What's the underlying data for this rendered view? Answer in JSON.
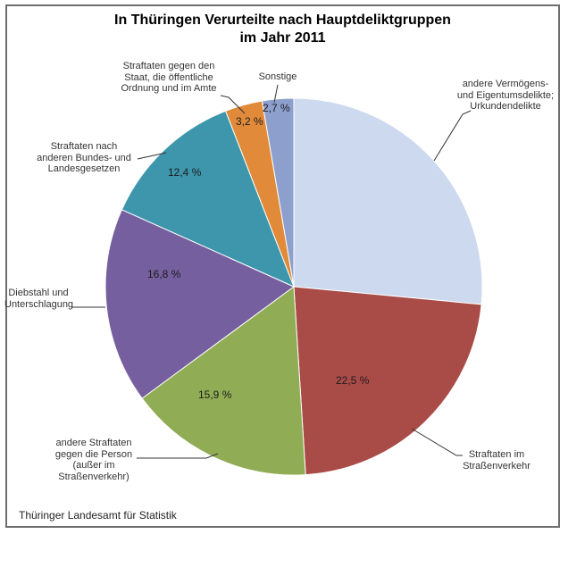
{
  "title": "In Thüringen Verurteilte nach Hauptdeliktgruppen\nim Jahr 2011",
  "footer": "Thüringer Landesamt für Statistik",
  "chart_data": {
    "type": "pie",
    "title": "In Thüringen Verurteilte nach Hauptdeliktgruppen im Jahr 2011",
    "unit": "%",
    "start_angle_deg": 0,
    "direction": "clockwise",
    "legend": "none",
    "label_style": "callouts-with-leader-lines",
    "slices": [
      {
        "label": "andere Vermögens-\nund Eigentumsdelikte;\nUrkundendelikte",
        "value": 26.5,
        "pct_label": "",
        "color": "#ccd9ee"
      },
      {
        "label": "Straftaten im\nStraßenverkehr",
        "value": 22.5,
        "pct_label": "22,5 %",
        "color": "#a94b47"
      },
      {
        "label": "andere Straftaten\ngegen die Person\n(außer im\nStraßenverkehr)",
        "value": 15.9,
        "pct_label": "15,9 %",
        "color": "#90ad55"
      },
      {
        "label": "Diebstahl und\nUnterschlagung",
        "value": 16.8,
        "pct_label": "16,8 %",
        "color": "#755f9e"
      },
      {
        "label": "Straftaten nach\nanderen Bundes- und\nLandesgesetzen",
        "value": 12.4,
        "pct_label": "12,4 %",
        "color": "#3e96ac"
      },
      {
        "label": "Straftaten gegen den\nStaat, die öffentliche\nOrdnung und im Amte",
        "value": 3.2,
        "pct_label": "3,2 %",
        "color": "#e08a3a"
      },
      {
        "label": "Sonstige",
        "value": 2.7,
        "pct_label": "2,7 %",
        "color": "#8da0cd"
      }
    ]
  }
}
